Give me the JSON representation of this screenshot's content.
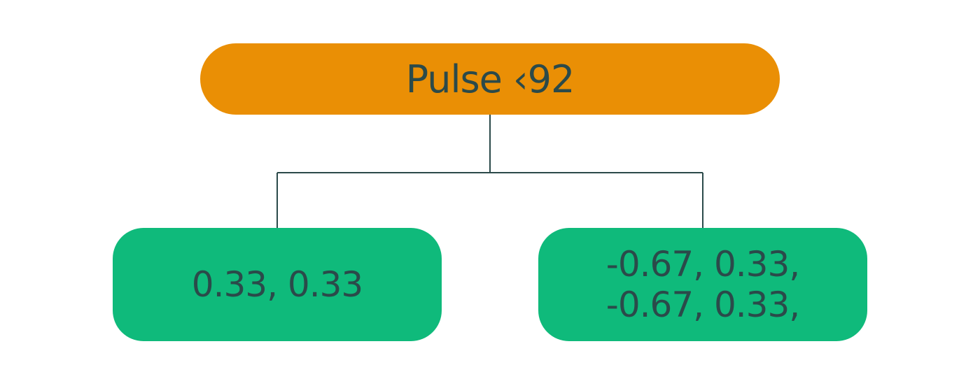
{
  "diagram": {
    "root": {
      "label": "Pulse ‹92"
    },
    "children": [
      {
        "lines": [
          "0.33, 0.33"
        ]
      },
      {
        "lines": [
          "-0.67, 0.33,",
          "-0.67, 0.33,"
        ]
      }
    ]
  },
  "colors": {
    "root_fill": "#ea8f05",
    "leaf_fill": "#0fba7b",
    "text": "#2b4a4a",
    "connector": "#2b4a4a"
  }
}
